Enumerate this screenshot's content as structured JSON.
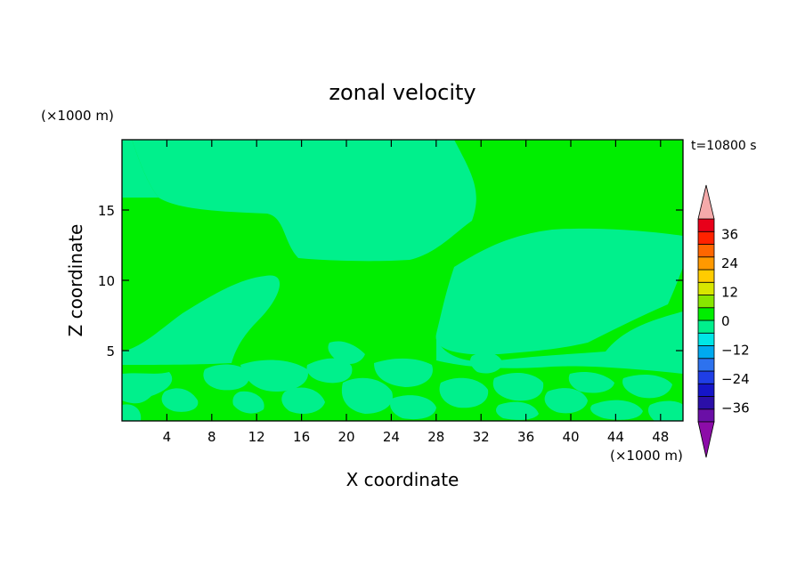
{
  "chart_data": {
    "type": "heatmap",
    "title": "zonal velocity",
    "xlabel": "X coordinate",
    "ylabel": "Z coordinate",
    "x_unit": "(×1000 m)",
    "y_unit": "(×1000 m)",
    "time_label": "t=10800 s",
    "xlim": [
      0,
      50
    ],
    "ylim": [
      0,
      20
    ],
    "x_ticks": [
      4,
      8,
      12,
      16,
      20,
      24,
      28,
      32,
      36,
      40,
      44,
      48
    ],
    "y_ticks": [
      5,
      10,
      15
    ],
    "fill_colors": {
      "band_0_to_6": "#00ee00",
      "band_minus6_to_0": "#00f08c"
    },
    "colorbar": {
      "range": [
        -42,
        42
      ],
      "interval": 6,
      "tick_values": [
        36,
        24,
        12,
        0,
        -12,
        -24,
        -36
      ],
      "tick_labels": [
        "36",
        "24",
        "12",
        "0",
        "−12",
        "−24",
        "−36"
      ],
      "colors": [
        "#6a0fa6",
        "#2b0fa8",
        "#1515c8",
        "#1f3ee6",
        "#2d72ee",
        "#00aaf0",
        "#00e6e6",
        "#00f08c",
        "#00ee00",
        "#88e600",
        "#d8e600",
        "#ffcc00",
        "#ff9900",
        "#ff6600",
        "#ff2200",
        "#e8001a"
      ],
      "over_color": "#f5aaaa",
      "under_color": "#8c0ca8"
    }
  }
}
